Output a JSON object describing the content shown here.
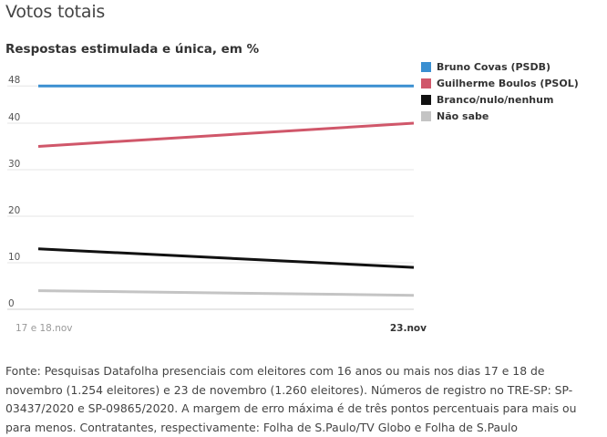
{
  "page_title": "Votos totais",
  "chart_data": {
    "type": "line",
    "title": "",
    "subtitle": "Respostas estimulada e única, em %",
    "xlabel": "",
    "ylabel": "",
    "categories": [
      "17 e 18.nov",
      "23.nov"
    ],
    "ylim": [
      0,
      48
    ],
    "yticks": [
      0,
      10,
      20,
      30,
      40,
      48
    ],
    "grid": true,
    "legend_position": "top-right",
    "series": [
      {
        "name": "Bruno Covas (PSDB)",
        "color": "#3a8fd1",
        "values": [
          48,
          48
        ]
      },
      {
        "name": "Guilherme Boulos (PSOL)",
        "color": "#d0576a",
        "values": [
          35,
          40
        ]
      },
      {
        "name": "Branco/nulo/nenhum",
        "color": "#111111",
        "values": [
          13,
          9
        ]
      },
      {
        "name": "Não sabe",
        "color": "#c4c4c4",
        "values": [
          4,
          3
        ]
      }
    ]
  },
  "source": "Fonte: Pesquisas Datafolha presenciais com eleitores com 16 anos ou mais nos dias 17 e 18 de novembro (1.254 eleitores) e 23 de novembro (1.260 eleitores). Números de registro no TRE-SP: SP-03437/2020 e SP-09865/2020. A margem de erro máxima é de três pontos percentuais para mais ou para menos. Contratantes, respectivamente: Folha de S.Paulo/TV Globo e Folha de S.Paulo"
}
